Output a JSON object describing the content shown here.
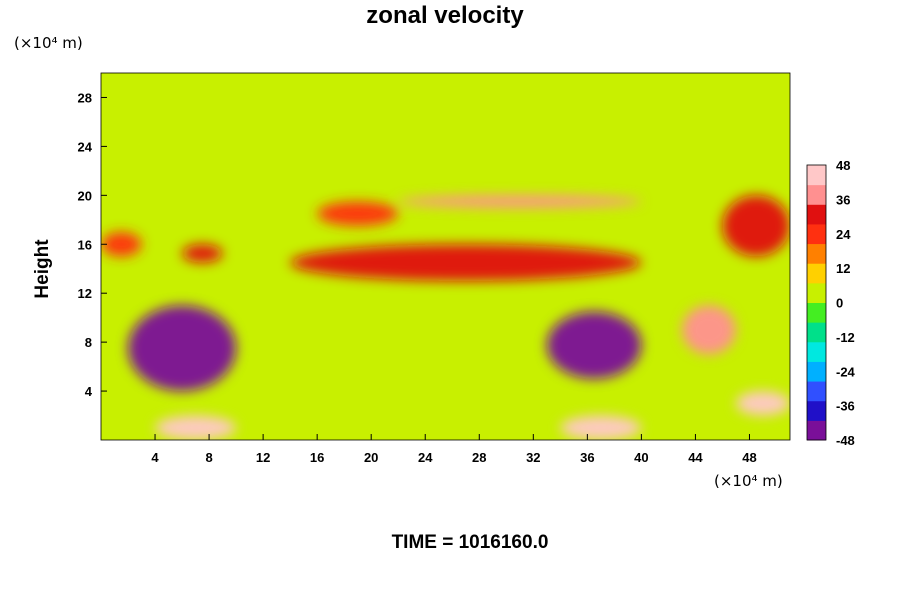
{
  "chart_data": {
    "type": "heatmap",
    "title": "zonal velocity",
    "ylabel": "Height",
    "xlabel": "",
    "y_unit": "(×10⁴ m)",
    "x_unit": "(×10⁴ m)",
    "footer": "TIME = 1016160.0",
    "xlim": [
      0,
      51
    ],
    "ylim": [
      0,
      30
    ],
    "x_ticks": [
      4,
      8,
      12,
      16,
      20,
      24,
      28,
      32,
      36,
      40,
      44,
      48
    ],
    "y_ticks": [
      4,
      8,
      12,
      16,
      20,
      24,
      28
    ],
    "colorbar": {
      "min": -48,
      "max": 48,
      "ticks": [
        48,
        36,
        24,
        12,
        0,
        -12,
        -24,
        -36,
        -48
      ],
      "colors": [
        "#7a0f99",
        "#2010c8",
        "#3050ff",
        "#00b0ff",
        "#00e8e0",
        "#00e08a",
        "#44ee22",
        "#c8f000",
        "#ffd000",
        "#ff8000",
        "#ff3010",
        "#e01010",
        "#ff9090",
        "#ffc8c8"
      ]
    },
    "background": 0,
    "features": [
      {
        "name": "upper jet stream",
        "x": [
          22,
          40
        ],
        "y": [
          19,
          20
        ],
        "value": 40
      },
      {
        "name": "mid-level westerlies",
        "x": [
          14,
          40
        ],
        "y": [
          13,
          16
        ],
        "value": 28
      },
      {
        "name": "left westerlies",
        "x": [
          0,
          3
        ],
        "y": [
          15,
          17
        ],
        "value": 26
      },
      {
        "name": "west-level eddy",
        "x": [
          6,
          9
        ],
        "y": [
          14.5,
          16
        ],
        "value": 28
      },
      {
        "name": "upper-left jet",
        "x": [
          16,
          22
        ],
        "y": [
          17.5,
          19.5
        ],
        "value": 26
      },
      {
        "name": "upper-right jet",
        "x": [
          46,
          51
        ],
        "y": [
          15,
          20
        ],
        "value": 30
      },
      {
        "name": "easterly core west",
        "x": [
          2,
          10
        ],
        "y": [
          4,
          11
        ],
        "value": -48
      },
      {
        "name": "easterly core east",
        "x": [
          33,
          40
        ],
        "y": [
          5,
          10.5
        ],
        "value": -48
      },
      {
        "name": "surface westerlies west",
        "x": [
          4,
          10
        ],
        "y": [
          0,
          2
        ],
        "value": 48
      },
      {
        "name": "surface westerlies east",
        "x": [
          34,
          40
        ],
        "y": [
          0,
          2
        ],
        "value": 48
      },
      {
        "name": "surface westerlies far east",
        "x": [
          47,
          51
        ],
        "y": [
          2,
          4
        ],
        "value": 46
      },
      {
        "name": "oscillating shear",
        "x": [
          43,
          47
        ],
        "y": [
          7,
          11
        ],
        "value": 36
      }
    ]
  }
}
